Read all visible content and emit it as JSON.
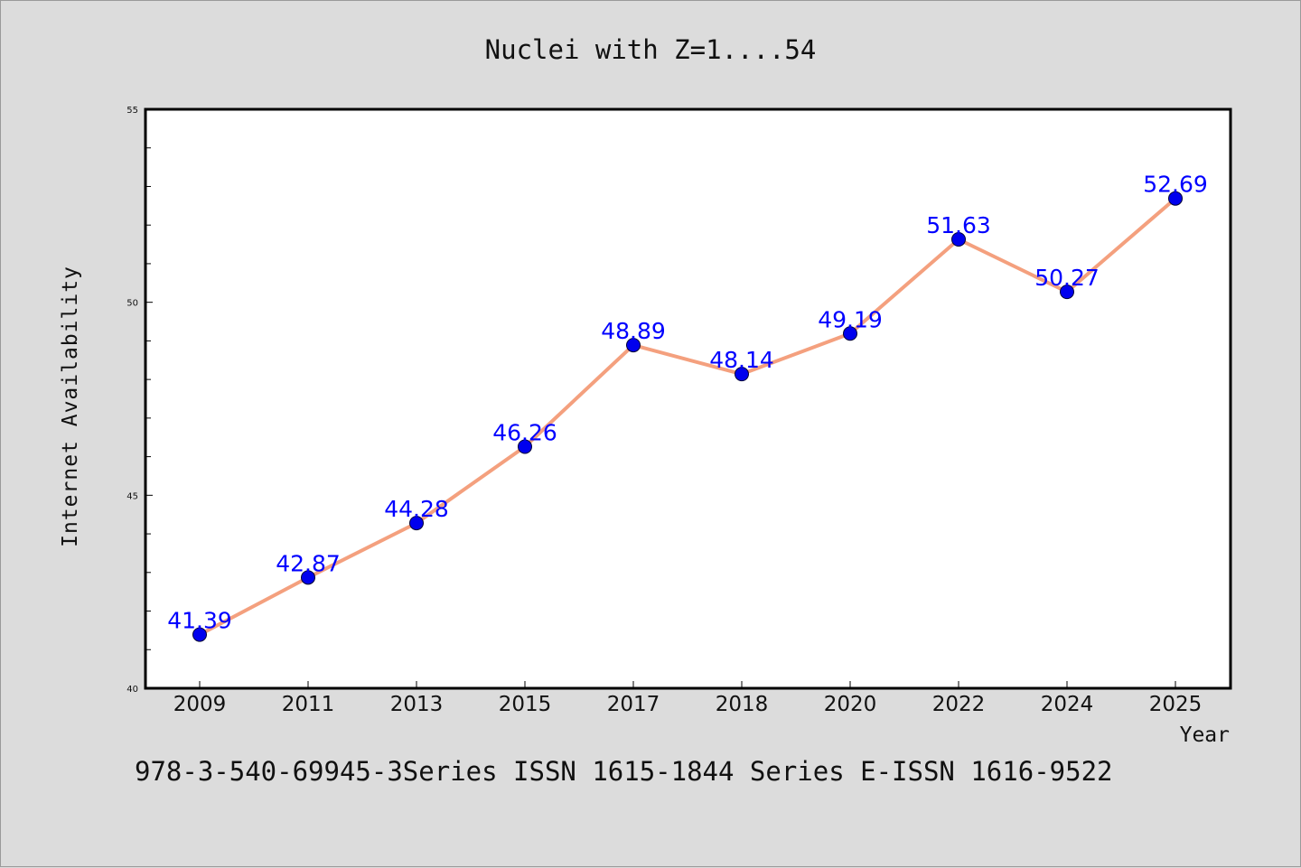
{
  "chart_data": {
    "type": "line",
    "title": "Nuclei with Z=1....54",
    "xlabel": "Year",
    "ylabel": "Internet Availability",
    "footer": "978-3-540-69945-3Series ISSN 1615-1844 Series E-ISSN 1616-9522",
    "categories": [
      "2009",
      "2011",
      "2013",
      "2015",
      "2017",
      "2018",
      "2020",
      "2022",
      "2024",
      "2025"
    ],
    "series": [
      {
        "values": [
          41.39,
          42.87,
          44.28,
          46.26,
          48.89,
          48.14,
          49.19,
          51.63,
          50.27,
          52.69
        ],
        "labels": [
          "41.39",
          "42.87",
          "44.28",
          "46.26",
          "48.89",
          "48.14",
          "49.19",
          "51.63",
          "50.27",
          "52.69"
        ],
        "line_color": "#f4a07e",
        "marker_color": "#0000ee",
        "label_color": "#0000ff"
      }
    ],
    "ylim": [
      40,
      55
    ],
    "yticks": [
      40,
      45,
      50,
      55
    ],
    "ytick_labels": [
      "40",
      "45",
      "50",
      "55"
    ],
    "minor_ytick_step": 1,
    "grid": false,
    "legend": "none",
    "plot_background": "#ffffff",
    "figure_background": "#dcdcdc"
  }
}
